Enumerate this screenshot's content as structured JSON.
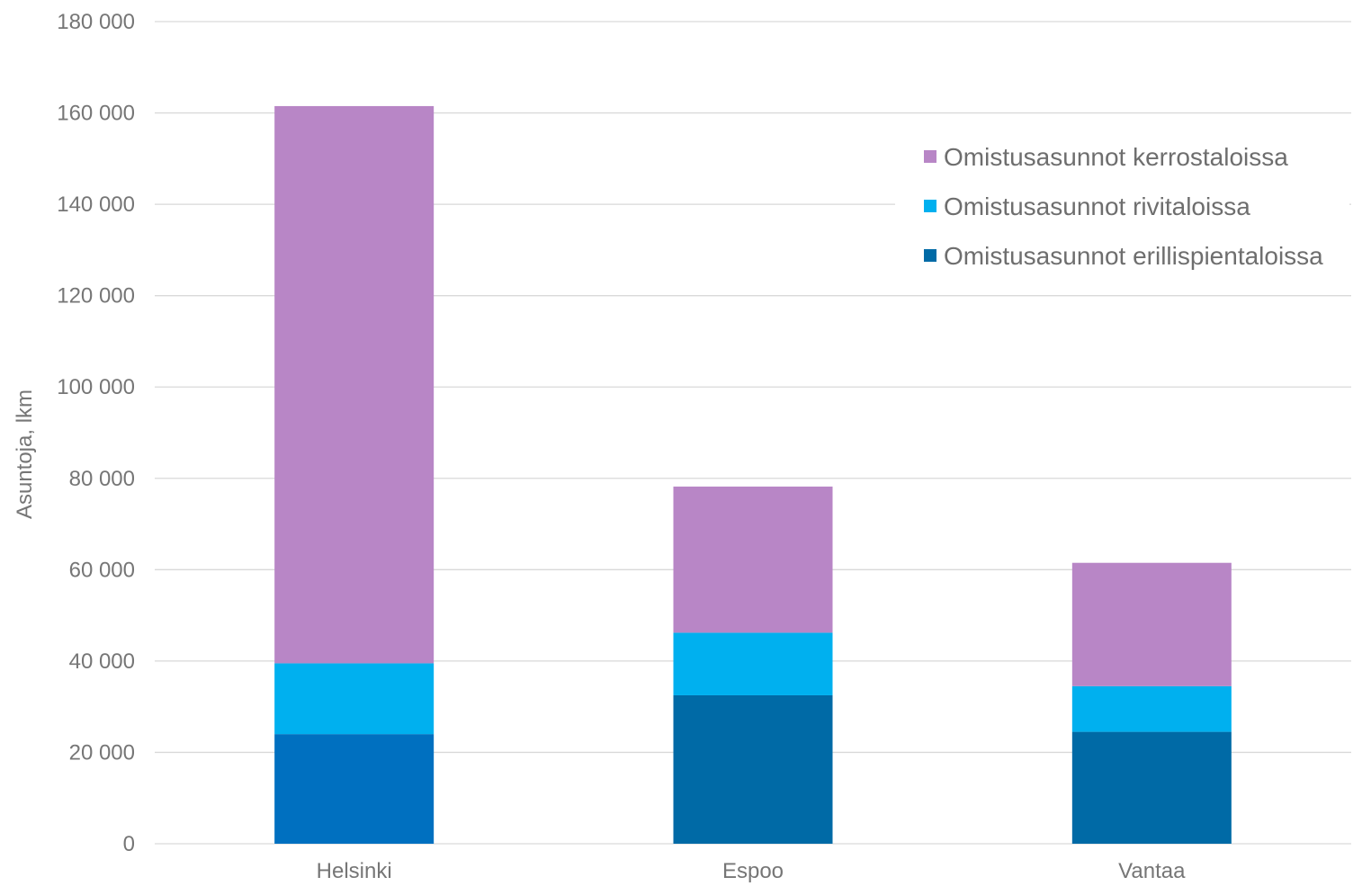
{
  "chart_data": {
    "type": "bar",
    "stacked": true,
    "title": "",
    "xlabel": "",
    "ylabel": "Asuntoja, lkm",
    "ylim": [
      0,
      180000
    ],
    "yticks": [
      0,
      20000,
      40000,
      60000,
      80000,
      100000,
      120000,
      140000,
      160000,
      180000
    ],
    "ytick_labels": [
      "0",
      "20 000",
      "40 000",
      "60 000",
      "80 000",
      "100 000",
      "120 000",
      "140 000",
      "160 000",
      "180 000"
    ],
    "categories": [
      "Helsinki",
      "Espoo",
      "Vantaa"
    ],
    "grid": true,
    "legend_position": "top-right",
    "series": [
      {
        "name": "Omistusasunnot erillispientaloissa",
        "color": "#006aa6",
        "point_colors": [
          "#0070c0",
          "#006aa6",
          "#006aa6"
        ],
        "values": [
          24000,
          32500,
          24500
        ]
      },
      {
        "name": "Omistusasunnot rivitaloissa",
        "color": "#00b0ef",
        "values": [
          15500,
          13700,
          10000
        ]
      },
      {
        "name": "Omistusasunnot kerrostaloissa",
        "color": "#b886c6",
        "values": [
          122000,
          32000,
          27000
        ]
      }
    ],
    "legend_order": [
      "Omistusasunnot kerrostaloissa",
      "Omistusasunnot rivitaloissa",
      "Omistusasunnot erillispientaloissa"
    ]
  }
}
